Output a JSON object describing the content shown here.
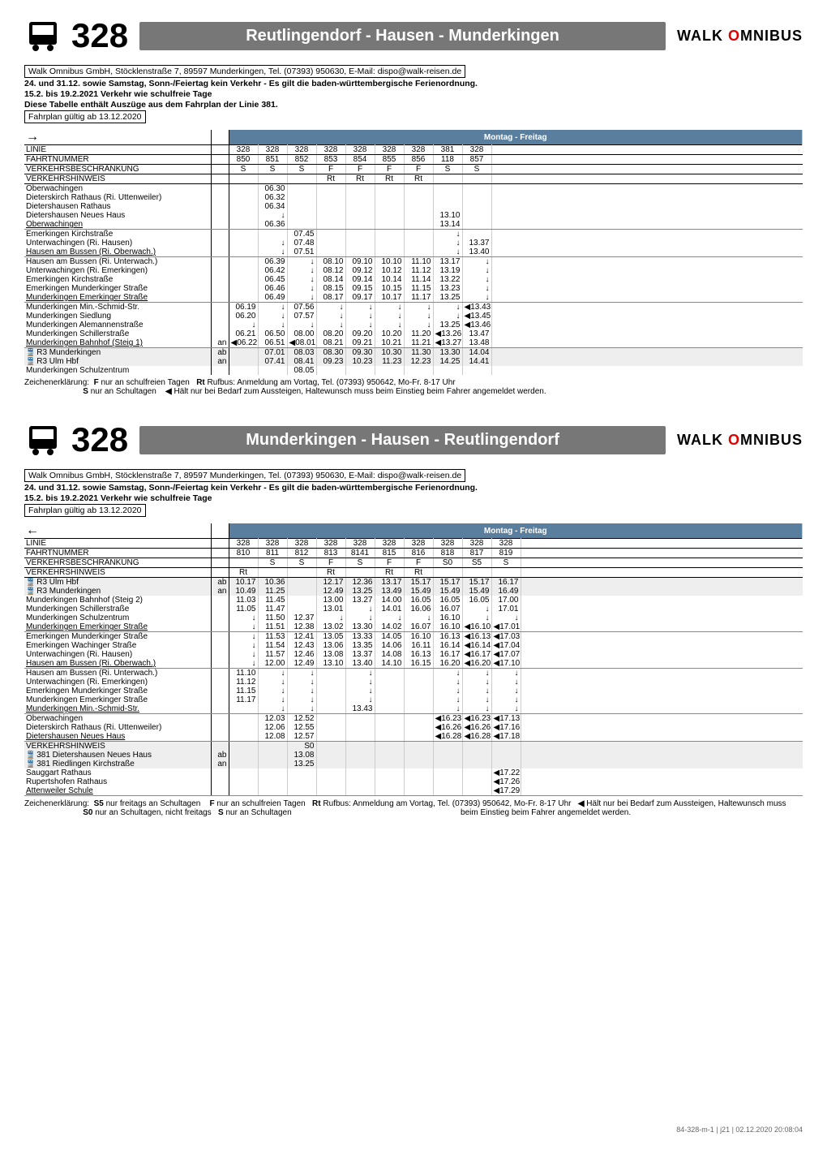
{
  "brand": "WALK OMNIBUS",
  "route_number": "328",
  "direction1": {
    "title": "Reutlingendorf - Hausen - Munderkingen",
    "mf_label": "Montag - Freitag",
    "info_box": "Walk Omnibus GmbH, Stöcklenstraße 7, 89597 Munderkingen, Tel. (07393) 950630, E-Mail: dispo@walk-reisen.de",
    "info_lines": [
      "24. und 31.12. sowie Samstag, Sonn-/Feiertag kein Verkehr - Es gilt die baden-württembergische Ferienordnung.",
      "15.2. bis 19.2.2021 Verkehr wie schulfreie Tage",
      "Diese Tabelle enthält Auszüge aus dem Fahrplan der Linie 381."
    ],
    "valid_box": "Fahrplan gültig ab 13.12.2020",
    "header_rows": {
      "linie": [
        "LINIE",
        "",
        "328",
        "328",
        "328",
        "328",
        "328",
        "328",
        "328",
        "381",
        "328"
      ],
      "fnr": [
        "FAHRTNUMMER",
        "",
        "850",
        "851",
        "852",
        "853",
        "854",
        "855",
        "856",
        "118",
        "857"
      ],
      "vb": [
        "VERKEHRSBESCHRÄNKUNG",
        "",
        "S",
        "S",
        "S",
        "F",
        "F",
        "F",
        "F",
        "S",
        "S"
      ],
      "vh": [
        "VERKEHRSHINWEIS",
        "",
        "",
        "",
        "",
        "Rt",
        "Rt",
        "Rt",
        "Rt",
        "",
        ""
      ]
    },
    "stops": [
      {
        "n": "Oberwachingen",
        "m": "",
        "t": [
          "",
          "06.30",
          "",
          "",
          "",
          "",
          "",
          "",
          ""
        ]
      },
      {
        "n": "Dieterskirch Rathaus (Ri. Uttenweiler)",
        "m": "",
        "t": [
          "",
          "06.32",
          "",
          "",
          "",
          "",
          "",
          "",
          ""
        ]
      },
      {
        "n": "Dietershausen Rathaus",
        "m": "",
        "t": [
          "",
          "06.34",
          "",
          "",
          "",
          "",
          "",
          "",
          ""
        ]
      },
      {
        "n": "Dietershausen Neues Haus",
        "m": "",
        "t": [
          "",
          "↓",
          "",
          "",
          "",
          "",
          "",
          "13.10",
          ""
        ]
      },
      {
        "n": "Oberwachingen",
        "m": "",
        "u": true,
        "t": [
          "",
          "06.36",
          "",
          "",
          "",
          "",
          "",
          "13.14",
          ""
        ]
      },
      {
        "n": "Emerkingen Kirchstraße",
        "m": "",
        "t": [
          "",
          "",
          "07.45",
          "",
          "",
          "",
          "",
          "↓",
          ""
        ]
      },
      {
        "n": "Unterwachingen (Ri. Hausen)",
        "m": "",
        "t": [
          "",
          "↓",
          "07.48",
          "",
          "",
          "",
          "",
          "↓",
          "13.37"
        ]
      },
      {
        "n": "Hausen am Bussen (Ri. Oberwach.)",
        "m": "",
        "u": true,
        "t": [
          "",
          "↓",
          "07.51",
          "",
          "",
          "",
          "",
          "↓",
          "13.40"
        ]
      },
      {
        "n": "Hausen am Bussen (Ri. Unterwach.)",
        "m": "",
        "t": [
          "",
          "06.39",
          "↓",
          "08.10",
          "09.10",
          "10.10",
          "11.10",
          "13.17",
          "↓"
        ]
      },
      {
        "n": "Unterwachingen (Ri. Emerkingen)",
        "m": "",
        "t": [
          "",
          "06.42",
          "↓",
          "08.12",
          "09.12",
          "10.12",
          "11.12",
          "13.19",
          "↓"
        ]
      },
      {
        "n": "Emerkingen Kirchstraße",
        "m": "",
        "t": [
          "",
          "06.45",
          "↓",
          "08.14",
          "09.14",
          "10.14",
          "11.14",
          "13.22",
          "↓"
        ]
      },
      {
        "n": "Emerkingen Munderkinger Straße",
        "m": "",
        "t": [
          "",
          "06.46",
          "↓",
          "08.15",
          "09.15",
          "10.15",
          "11.15",
          "13.23",
          "↓"
        ]
      },
      {
        "n": "Munderkingen Emerkinger Straße",
        "m": "",
        "u": true,
        "t": [
          "",
          "06.49",
          "↓",
          "08.17",
          "09.17",
          "10.17",
          "11.17",
          "13.25",
          "↓"
        ]
      },
      {
        "n": "Munderkingen Min.-Schmid-Str.",
        "m": "",
        "t": [
          "06.19",
          "↓",
          "07.56",
          "↓",
          "↓",
          "↓",
          "↓",
          "↓",
          "◀13.43"
        ]
      },
      {
        "n": "Munderkingen Siedlung",
        "m": "",
        "t": [
          "06.20",
          "↓",
          "07.57",
          "↓",
          "↓",
          "↓",
          "↓",
          "↓",
          "◀13.45"
        ]
      },
      {
        "n": "Munderkingen Alemannenstraße",
        "m": "",
        "t": [
          "↓",
          "↓",
          "↓",
          "↓",
          "↓",
          "↓",
          "↓",
          "13.25",
          "◀13.46"
        ]
      },
      {
        "n": "Munderkingen Schillerstraße",
        "m": "",
        "t": [
          "06.21",
          "06.50",
          "08.00",
          "08.20",
          "09.20",
          "10.20",
          "11.20",
          "◀13.26",
          "13.47"
        ]
      },
      {
        "n": "Munderkingen Bahnhof (Steig 1)",
        "m": "an",
        "u": true,
        "t": [
          "◀06.22",
          "06.51",
          "◀08.01",
          "08.21",
          "09.21",
          "10.21",
          "11.21",
          "◀13.27",
          "13.48"
        ]
      },
      {
        "n": "R3 Munderkingen",
        "m": "ab",
        "rail": true,
        "sh": true,
        "t": [
          "",
          "07.01",
          "08.03",
          "08.30",
          "09.30",
          "10.30",
          "11.30",
          "13.30",
          "14.04"
        ]
      },
      {
        "n": "R3 Ulm Hbf",
        "m": "an",
        "rail": true,
        "sh": true,
        "t": [
          "",
          "07.41",
          "08.41",
          "09.23",
          "10.23",
          "11.23",
          "12.23",
          "14.25",
          "14.41"
        ]
      },
      {
        "n": "Munderkingen Schulzentrum",
        "m": "",
        "t": [
          "",
          "",
          "08.05",
          "",
          "",
          "",
          "",
          "",
          ""
        ]
      }
    ],
    "legend": {
      "l1": "Zeichenerklärung:",
      "l2": "F nur an schulfreien Tagen",
      "l3": "S nur an Schultagen",
      "l4": "Rt Rufbus: Anmeldung am Vortag, Tel. (07393) 950642, Mo-Fr. 8-17 Uhr",
      "l5": "◀ Hält nur bei Bedarf zum Aussteigen, Haltewunsch muss beim Einstieg beim Fahrer angemeldet werden."
    }
  },
  "direction2": {
    "title": "Munderkingen - Hausen - Reutlingendorf",
    "mf_label": "Montag - Freitag",
    "info_box": "Walk Omnibus GmbH, Stöcklenstraße 7, 89597 Munderkingen, Tel. (07393) 950630, E-Mail: dispo@walk-reisen.de",
    "info_lines": [
      "24. und 31.12. sowie Samstag, Sonn-/Feiertag kein Verkehr - Es gilt die baden-württembergische Ferienordnung.",
      "15.2. bis 19.2.2021 Verkehr wie schulfreie Tage"
    ],
    "valid_box": "Fahrplan gültig ab 13.12.2020",
    "header_rows": {
      "linie": [
        "LINIE",
        "",
        "328",
        "328",
        "328",
        "328",
        "328",
        "328",
        "328",
        "328",
        "328",
        "328"
      ],
      "fnr": [
        "FAHRTNUMMER",
        "",
        "810",
        "811",
        "812",
        "813",
        "8141",
        "815",
        "816",
        "818",
        "817",
        "819"
      ],
      "vb": [
        "VERKEHRSBESCHRÄNKUNG",
        "",
        "",
        "S",
        "S",
        "F",
        "S",
        "F",
        "F",
        "S0",
        "S5",
        "S"
      ],
      "vh": [
        "VERKEHRSHINWEIS",
        "",
        "Rt",
        "",
        "",
        "Rt",
        "",
        "Rt",
        "Rt",
        "",
        "",
        ""
      ]
    },
    "stops": [
      {
        "n": "R3 Ulm Hbf",
        "m": "ab",
        "rail": true,
        "sh": true,
        "t": [
          "10.17",
          "10.36",
          "",
          "12.17",
          "12.36",
          "13.17",
          "15.17",
          "15.17",
          "15.17",
          "16.17"
        ]
      },
      {
        "n": "R3 Munderkingen",
        "m": "an",
        "rail": true,
        "sh": true,
        "t": [
          "10.49",
          "11.25",
          "",
          "12.49",
          "13.25",
          "13.49",
          "15.49",
          "15.49",
          "15.49",
          "16.49"
        ]
      },
      {
        "n": "Munderkingen Bahnhof (Steig 2)",
        "m": "",
        "t": [
          "11.03",
          "11.45",
          "",
          "13.00",
          "13.27",
          "14.00",
          "16.05",
          "16.05",
          "16.05",
          "17.00"
        ]
      },
      {
        "n": "Munderkingen Schillerstraße",
        "m": "",
        "t": [
          "11.05",
          "11.47",
          "",
          "13.01",
          "↓",
          "14.01",
          "16.06",
          "16.07",
          "↓",
          "17.01"
        ]
      },
      {
        "n": "Munderkingen Schulzentrum",
        "m": "",
        "t": [
          "↓",
          "11.50",
          "12.37",
          "↓",
          "↓",
          "↓",
          "↓",
          "16.10",
          "↓",
          "↓"
        ]
      },
      {
        "n": "Munderkingen Emerkinger Straße",
        "m": "",
        "u": true,
        "t": [
          "↓",
          "11.51",
          "12.38",
          "13.02",
          "13.30",
          "14.02",
          "16.07",
          "16.10",
          "◀16.10",
          "◀17.01"
        ]
      },
      {
        "n": "Emerkingen Munderkinger Straße",
        "m": "",
        "t": [
          "↓",
          "11.53",
          "12.41",
          "13.05",
          "13.33",
          "14.05",
          "16.10",
          "16.13",
          "◀16.13",
          "◀17.03"
        ]
      },
      {
        "n": "Emerkingen Wachinger Straße",
        "m": "",
        "t": [
          "↓",
          "11.54",
          "12.43",
          "13.06",
          "13.35",
          "14.06",
          "16.11",
          "16.14",
          "◀16.14",
          "◀17.04"
        ]
      },
      {
        "n": "Unterwachingen (Ri. Hausen)",
        "m": "",
        "t": [
          "↓",
          "11.57",
          "12.46",
          "13.08",
          "13.37",
          "14.08",
          "16.13",
          "16.17",
          "◀16.17",
          "◀17.07"
        ]
      },
      {
        "n": "Hausen am Bussen (Ri. Oberwach.)",
        "m": "",
        "u": true,
        "t": [
          "↓",
          "12.00",
          "12.49",
          "13.10",
          "13.40",
          "14.10",
          "16.15",
          "16.20",
          "◀16.20",
          "◀17.10"
        ]
      },
      {
        "n": "Hausen am Bussen (Ri. Unterwach.)",
        "m": "",
        "t": [
          "11.10",
          "↓",
          "↓",
          "",
          "↓",
          "",
          "",
          "↓",
          "↓",
          "↓"
        ]
      },
      {
        "n": "Unterwachingen (Ri. Emerkingen)",
        "m": "",
        "t": [
          "11.12",
          "↓",
          "↓",
          "",
          "↓",
          "",
          "",
          "↓",
          "↓",
          "↓"
        ]
      },
      {
        "n": "Emerkingen Munderkinger Straße",
        "m": "",
        "t": [
          "11.15",
          "↓",
          "↓",
          "",
          "↓",
          "",
          "",
          "↓",
          "↓",
          "↓"
        ]
      },
      {
        "n": "Munderkingen Emerkinger Straße",
        "m": "",
        "t": [
          "11.17",
          "↓",
          "↓",
          "",
          "↓",
          "",
          "",
          "↓",
          "↓",
          "↓"
        ]
      },
      {
        "n": "Munderkingen Min.-Schmid-Str.",
        "m": "",
        "u": true,
        "t": [
          "",
          "↓",
          "↓",
          "",
          "13.43",
          "",
          "",
          "↓",
          "↓",
          "↓"
        ]
      },
      {
        "n": "Oberwachingen",
        "m": "",
        "t": [
          "",
          "12.03",
          "12.52",
          "",
          "",
          "",
          "",
          "◀16.23",
          "◀16.23",
          "◀17.13"
        ]
      },
      {
        "n": "Dieterskirch Rathaus (Ri. Uttenweiler)",
        "m": "",
        "t": [
          "",
          "12.06",
          "12.55",
          "",
          "",
          "",
          "",
          "◀16.26",
          "◀16.26",
          "◀17.16"
        ]
      },
      {
        "n": "Dietershausen Neues Haus",
        "m": "",
        "u": true,
        "t": [
          "",
          "12.08",
          "12.57",
          "",
          "",
          "",
          "",
          "◀16.28",
          "◀16.28",
          "◀17.18"
        ]
      },
      {
        "n": "VERKEHRSHINWEIS",
        "m": "",
        "sh": true,
        "t": [
          "",
          "",
          "S0",
          "",
          "",
          "",
          "",
          "",
          "",
          ""
        ]
      },
      {
        "n": "381 Dietershausen Neues Haus",
        "m": "ab",
        "rail": true,
        "sh": true,
        "t": [
          "",
          "",
          "13.08",
          "",
          "",
          "",
          "",
          "",
          "",
          ""
        ]
      },
      {
        "n": "381 Riedlingen Kirchstraße",
        "m": "an",
        "rail": true,
        "sh": true,
        "t": [
          "",
          "",
          "13.25",
          "",
          "",
          "",
          "",
          "",
          "",
          ""
        ]
      },
      {
        "n": "Sauggart Rathaus",
        "m": "",
        "t": [
          "",
          "",
          "",
          "",
          "",
          "",
          "",
          "",
          "",
          "◀17.22"
        ]
      },
      {
        "n": "Rupertshofen Rathaus",
        "m": "",
        "t": [
          "",
          "",
          "",
          "",
          "",
          "",
          "",
          "",
          "",
          "◀17.26"
        ]
      },
      {
        "n": "Attenweiler Schule",
        "m": "",
        "u": true,
        "t": [
          "",
          "",
          "",
          "",
          "",
          "",
          "",
          "",
          "",
          "◀17.29"
        ]
      }
    ],
    "legend": {
      "l1": "Zeichenerklärung:",
      "l2": "S5 nur freitags an Schultagen",
      "l3": "S0 nur an Schultagen, nicht freitags",
      "l4": "F nur an schulfreien Tagen",
      "l5": "S nur an Schultagen",
      "l6": "Rt Rufbus: Anmeldung am Vortag, Tel. (07393) 950642, Mo-Fr. 8-17 Uhr",
      "l7": "◀ Hält nur bei Bedarf zum Aussteigen, Haltewunsch muss beim Einstieg beim Fahrer angemeldet werden."
    }
  },
  "footer": "84-328-m-1 | j21 | 02.12.2020 20:08:04",
  "colors": {
    "header_bg": "#777",
    "mf_bg": "#5a7f9e",
    "shade": "#eee"
  }
}
